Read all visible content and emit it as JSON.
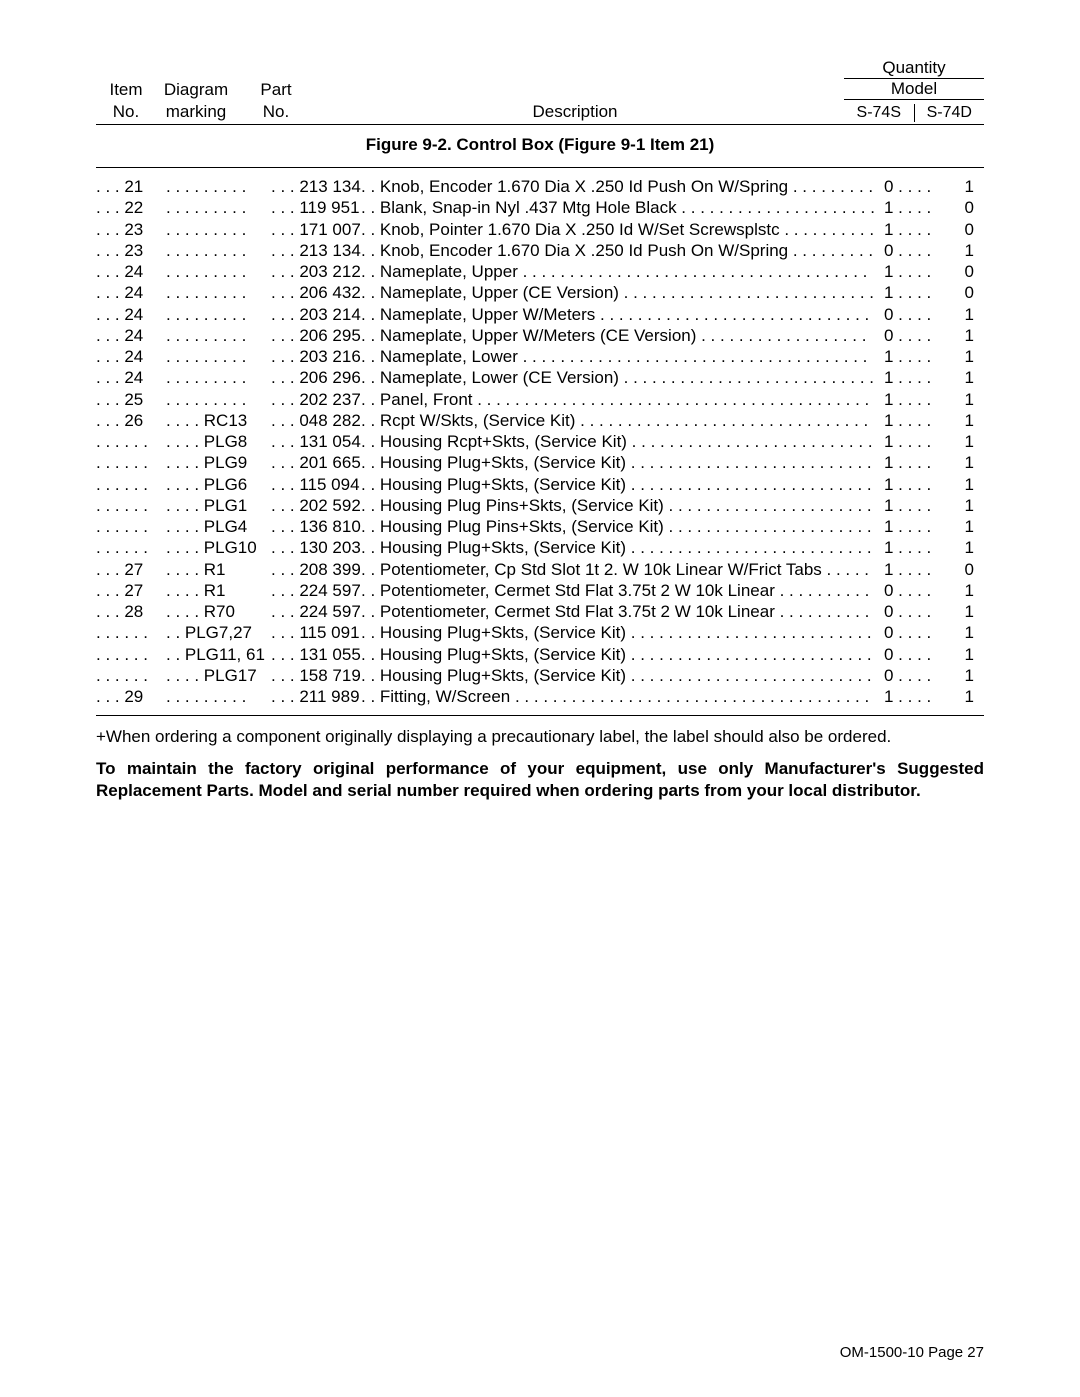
{
  "header": {
    "item_label1": "Item",
    "item_label2": "No.",
    "diagram_label1": "Diagram",
    "diagram_label2": "marking",
    "part_label1": "Part",
    "part_label2": "No.",
    "description_label": "Description",
    "quantity_label": "Quantity",
    "model_label": "Model",
    "model_col1": "S-74S",
    "model_col2": "S-74D"
  },
  "figure_title": "Figure 9-2. Control Box (Figure 9-1 Item 21)",
  "rows": [
    {
      "item": "21",
      "diagram": "",
      "part": "213 134",
      "desc": "Knob, Encoder 1.670 Dia X .250 Id Push On W/Spring",
      "q1": "0",
      "q2": "1"
    },
    {
      "item": "22",
      "diagram": "",
      "part": "119 951",
      "desc": "Blank, Snap-in Nyl .437 Mtg Hole Black",
      "q1": "1",
      "q2": "0"
    },
    {
      "item": "23",
      "diagram": "",
      "part": "171 007",
      "desc": "Knob, Pointer 1.670 Dia X .250 Id W/Set Screwsplstc",
      "q1": "1",
      "q2": "0"
    },
    {
      "item": "23",
      "diagram": "",
      "part": "213 134",
      "desc": "Knob, Encoder 1.670 Dia X .250 Id Push On W/Spring",
      "q1": "0",
      "q2": "1"
    },
    {
      "item": "24",
      "diagram": "",
      "part": "203 212",
      "desc": "Nameplate, Upper",
      "q1": "1",
      "q2": "0"
    },
    {
      "item": "24",
      "diagram": "",
      "part": "206 432",
      "desc": "Nameplate, Upper (CE Version)",
      "q1": "1",
      "q2": "0"
    },
    {
      "item": "24",
      "diagram": "",
      "part": "203 214",
      "desc": "Nameplate, Upper W/Meters",
      "q1": "0",
      "q2": "1"
    },
    {
      "item": "24",
      "diagram": "",
      "part": "206 295",
      "desc": "Nameplate, Upper W/Meters (CE Version)",
      "q1": "0",
      "q2": "1"
    },
    {
      "item": "24",
      "diagram": "",
      "part": "203 216",
      "desc": "Nameplate, Lower",
      "q1": "1",
      "q2": "1"
    },
    {
      "item": "24",
      "diagram": "",
      "part": "206 296",
      "desc": "Nameplate, Lower (CE Version)",
      "q1": "1",
      "q2": "1"
    },
    {
      "item": "25",
      "diagram": "",
      "part": "202 237",
      "desc": "Panel, Front",
      "q1": "1",
      "q2": "1"
    },
    {
      "item": "26",
      "diagram": "RC13",
      "part": "048 282",
      "desc": "Rcpt W/Skts, (Service Kit)",
      "q1": "1",
      "q2": "1"
    },
    {
      "item": "",
      "diagram": "PLG8",
      "part": "131 054",
      "desc": "Housing Rcpt+Skts, (Service Kit)",
      "q1": "1",
      "q2": "1"
    },
    {
      "item": "",
      "diagram": "PLG9",
      "part": "201 665",
      "desc": "Housing Plug+Skts, (Service Kit)",
      "q1": "1",
      "q2": "1"
    },
    {
      "item": "",
      "diagram": "PLG6",
      "part": "115 094",
      "desc": "Housing Plug+Skts, (Service Kit)",
      "q1": "1",
      "q2": "1"
    },
    {
      "item": "",
      "diagram": "PLG1",
      "part": "202 592",
      "desc": "Housing Plug Pins+Skts, (Service Kit)",
      "q1": "1",
      "q2": "1"
    },
    {
      "item": "",
      "diagram": "PLG4",
      "part": "136 810",
      "desc": "Housing Plug Pins+Skts, (Service Kit)",
      "q1": "1",
      "q2": "1"
    },
    {
      "item": "",
      "diagram": "PLG10",
      "part": "130 203",
      "desc": "Housing Plug+Skts, (Service Kit)",
      "q1": "1",
      "q2": "1"
    },
    {
      "item": "27",
      "diagram": "R1",
      "part": "208 399",
      "desc": "Potentiometer, Cp Std Slot 1t 2. W 10k Linear W/Frict Tabs",
      "q1": "1",
      "q2": "0"
    },
    {
      "item": "27",
      "diagram": "R1",
      "part": "224 597",
      "desc": "Potentiometer, Cermet Std Flat  3.75t 2    W   10k Linear",
      "q1": "0",
      "q2": "1"
    },
    {
      "item": "28",
      "diagram": "R70",
      "part": "224 597",
      "desc": "Potentiometer, Cermet Std Flat  3.75t 2    W   10k Linear",
      "q1": "0",
      "q2": "1"
    },
    {
      "item": "",
      "diagram": "PLG7,27",
      "part": "115 091",
      "desc": "Housing Plug+Skts, (Service Kit)",
      "q1": "0",
      "q2": "1"
    },
    {
      "item": "",
      "diagram": "PLG11, 61",
      "part": "131 055",
      "desc": "Housing Plug+Skts, (Service Kit)",
      "q1": "0",
      "q2": "1"
    },
    {
      "item": "",
      "diagram": "PLG17",
      "part": "158 719",
      "desc": "Housing Plug+Skts, (Service Kit)",
      "q1": "0",
      "q2": "1"
    },
    {
      "item": "29",
      "diagram": "",
      "part": "211 989",
      "desc": "Fitting, W/Screen",
      "q1": "1",
      "q2": "1"
    }
  ],
  "note1": "+When ordering a component originally displaying a precautionary label, the label should also be ordered.",
  "note2": "To maintain the factory original performance of your equipment, use only Manufacturer's Suggested Replacement Parts. Model and serial number required when ordering parts from your local distributor.",
  "footer": "OM-1500-10 Page 27"
}
